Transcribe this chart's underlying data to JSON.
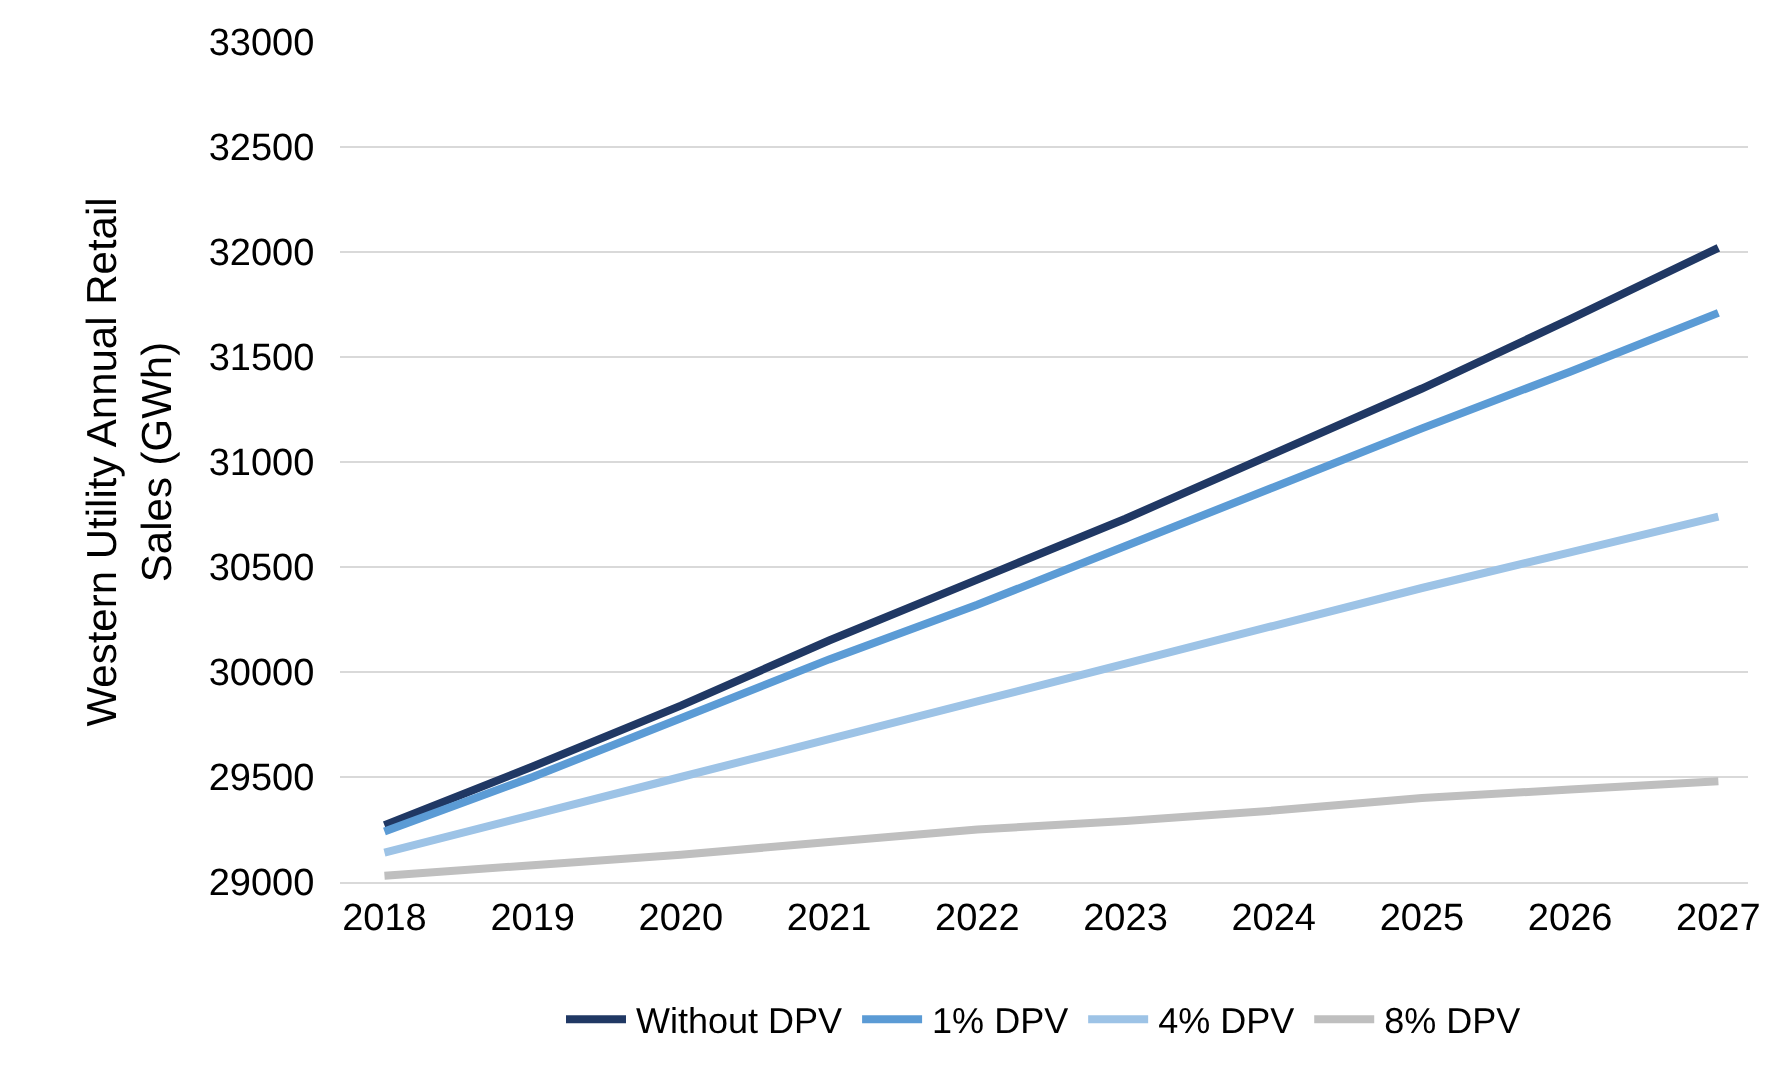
{
  "chart_data": {
    "type": "line",
    "ylabel": "Western Utility Annual Retail Sales (GWh)",
    "categories": [
      "2018",
      "2019",
      "2020",
      "2021",
      "2022",
      "2023",
      "2024",
      "2025",
      "2026",
      "2027"
    ],
    "series": [
      {
        "name": "Without DPV",
        "color": "#203864",
        "values": [
          29270,
          29550,
          29840,
          30150,
          30440,
          30730,
          31040,
          31350,
          31680,
          32020
        ]
      },
      {
        "name": "1% DPV",
        "color": "#5b9bd5",
        "values": [
          29240,
          29500,
          29780,
          30060,
          30320,
          30600,
          30880,
          31160,
          31430,
          31710
        ]
      },
      {
        "name": "4% DPV",
        "color": "#9dc3e6",
        "values": [
          29140,
          29320,
          29500,
          29680,
          29860,
          30040,
          30220,
          30400,
          30570,
          30740
        ]
      },
      {
        "name": "8% DPV",
        "color": "#bfbfbf",
        "values": [
          29030,
          29080,
          29130,
          29190,
          29250,
          29290,
          29340,
          29400,
          29440,
          29480
        ]
      }
    ],
    "ylim": [
      29000,
      33000
    ],
    "yticks": [
      29000,
      29500,
      30000,
      30500,
      31000,
      31500,
      32000,
      32500,
      33000
    ],
    "grid": "y",
    "legend": "bottom",
    "marker": "none",
    "line_style": "solid"
  }
}
